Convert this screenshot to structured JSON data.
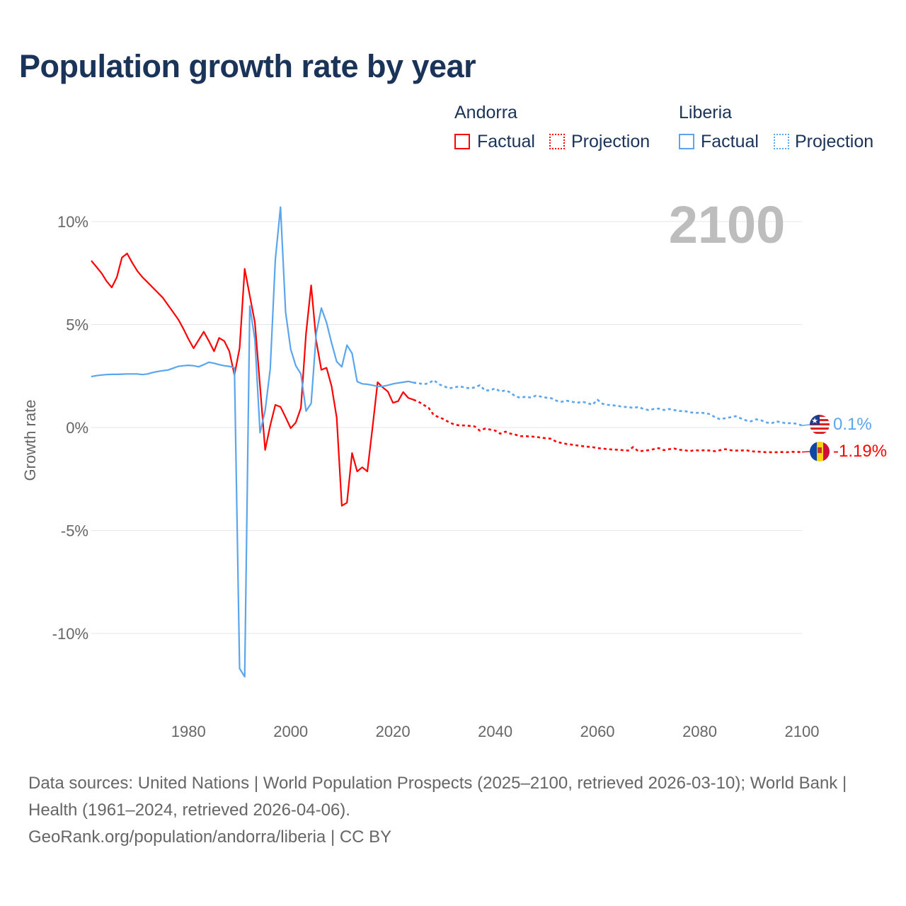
{
  "title": "Population growth rate by year",
  "legend": {
    "groups": [
      {
        "country": "Andorra",
        "factual": "Factual",
        "projection": "Projection",
        "color": "#ff0000"
      },
      {
        "country": "Liberia",
        "factual": "Factual",
        "projection": "Projection",
        "color": "#5aa5ee"
      }
    ]
  },
  "current_year": "2100",
  "end_labels": {
    "liberia": "0.1%",
    "andorra": "-1.19%"
  },
  "footer": {
    "sources": "Data sources: United Nations | World Population Prospects (2025–2100, retrieved 2026-03-10); World Bank | Health (1961–2024, retrieved 2026-04-06).",
    "link": "GeoRank.org/population/andorra/liberia | CC BY"
  },
  "chart_data": {
    "type": "line",
    "title": "Population growth rate by year",
    "xlabel": "",
    "ylabel": "Growth rate",
    "xlim": [
      1961,
      2100
    ],
    "ylim": [
      -12.5,
      11
    ],
    "yticks": [
      10,
      5,
      0,
      -5,
      -10
    ],
    "ytick_labels": [
      "10%",
      "5%",
      "0%",
      "-5%",
      "-10%"
    ],
    "xticks": [
      1980,
      2000,
      2020,
      2040,
      2060,
      2080,
      2100
    ],
    "xtick_labels": [
      "1980",
      "2000",
      "2020",
      "2040",
      "2060",
      "2080",
      "2100"
    ],
    "grid": true,
    "legend_position": "top-right",
    "series": [
      {
        "name": "Andorra Factual",
        "color": "#ff0000",
        "style": "solid",
        "start": 1961,
        "values": [
          8.1,
          7.8,
          7.5,
          7.1,
          6.8,
          7.3,
          8.25,
          8.45,
          8.0,
          7.6,
          7.3,
          7.05,
          6.8,
          6.55,
          6.3,
          5.95,
          5.6,
          5.25,
          4.8,
          4.3,
          3.85,
          4.25,
          4.65,
          4.2,
          3.7,
          4.35,
          4.2,
          3.7,
          2.55,
          3.85,
          7.7,
          6.4,
          5.1,
          2.0,
          -1.09,
          0.1,
          1.1,
          1.0,
          0.5,
          -0.03,
          0.24,
          0.95,
          4.57,
          6.9,
          4.2,
          2.8,
          2.9,
          2.0,
          0.48,
          -3.8,
          -3.65,
          -1.24,
          -2.13,
          -1.93,
          -2.13,
          0.0,
          2.2,
          1.95,
          1.75,
          1.2,
          1.28,
          1.72,
          1.44,
          1.35
        ]
      },
      {
        "name": "Andorra Projection",
        "color": "#ff0000",
        "style": "dotted",
        "start": 2024,
        "values": [
          1.35,
          1.25,
          1.1,
          0.95,
          0.6,
          0.5,
          0.4,
          0.25,
          0.15,
          0.1,
          0.1,
          0.08,
          0.05,
          -0.15,
          -0.05,
          -0.1,
          -0.15,
          -0.3,
          -0.2,
          -0.3,
          -0.35,
          -0.42,
          -0.42,
          -0.44,
          -0.45,
          -0.5,
          -0.52,
          -0.55,
          -0.7,
          -0.75,
          -0.8,
          -0.83,
          -0.87,
          -0.9,
          -0.93,
          -0.95,
          -1.0,
          -1.02,
          -1.05,
          -1.07,
          -1.08,
          -1.1,
          -1.12,
          -0.95,
          -1.15,
          -1.13,
          -1.1,
          -1.05,
          -1.0,
          -1.1,
          -1.05,
          -1.02,
          -1.08,
          -1.1,
          -1.15,
          -1.1,
          -1.12,
          -1.1,
          -1.12,
          -1.15,
          -1.1,
          -1.05,
          -1.1,
          -1.12,
          -1.12,
          -1.1,
          -1.15,
          -1.17,
          -1.18,
          -1.2,
          -1.2,
          -1.2,
          -1.19,
          -1.2,
          -1.18,
          -1.19,
          -1.19
        ]
      },
      {
        "name": "Liberia Factual",
        "color": "#5aa5ee",
        "style": "solid",
        "start": 1961,
        "values": [
          2.47,
          2.52,
          2.55,
          2.57,
          2.58,
          2.58,
          2.59,
          2.6,
          2.6,
          2.6,
          2.57,
          2.6,
          2.67,
          2.72,
          2.76,
          2.79,
          2.88,
          2.97,
          3.0,
          3.02,
          3.0,
          2.95,
          3.05,
          3.17,
          3.12,
          3.05,
          3.0,
          2.97,
          2.9,
          -11.7,
          -12.1,
          5.9,
          4.27,
          -0.25,
          0.82,
          2.85,
          8.15,
          10.7,
          5.6,
          3.8,
          3.0,
          2.6,
          0.8,
          1.17,
          4.57,
          5.8,
          5.1,
          4.1,
          3.2,
          2.95,
          4.0,
          3.6,
          2.23,
          2.12,
          2.1,
          2.05,
          2.0,
          2.0,
          2.05,
          2.12,
          2.16,
          2.2,
          2.24,
          2.18
        ]
      },
      {
        "name": "Liberia Projection",
        "color": "#5aa5ee",
        "style": "dotted",
        "start": 2024,
        "values": [
          2.18,
          2.15,
          2.1,
          2.15,
          2.3,
          2.1,
          2.0,
          1.9,
          1.95,
          2.0,
          1.95,
          1.9,
          1.95,
          2.05,
          1.8,
          1.8,
          1.9,
          1.75,
          1.8,
          1.7,
          1.5,
          1.45,
          1.5,
          1.45,
          1.55,
          1.5,
          1.45,
          1.42,
          1.3,
          1.25,
          1.3,
          1.25,
          1.2,
          1.25,
          1.2,
          1.1,
          1.35,
          1.15,
          1.1,
          1.08,
          1.05,
          1.0,
          1.0,
          0.95,
          1.0,
          0.9,
          0.85,
          0.9,
          0.92,
          0.85,
          0.9,
          0.85,
          0.8,
          0.8,
          0.75,
          0.7,
          0.72,
          0.7,
          0.65,
          0.5,
          0.4,
          0.45,
          0.5,
          0.55,
          0.45,
          0.35,
          0.3,
          0.4,
          0.35,
          0.25,
          0.2,
          0.3,
          0.25,
          0.2,
          0.22,
          0.18,
          0.1
        ]
      }
    ]
  }
}
